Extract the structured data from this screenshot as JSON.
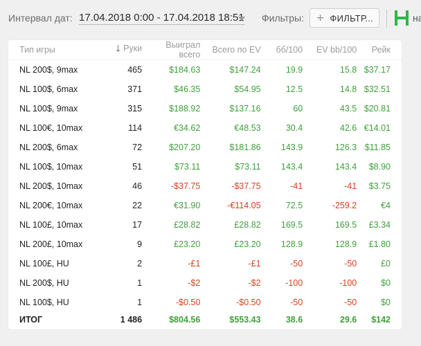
{
  "toolbar": {
    "date_label": "Интервал дат:",
    "date_value": "17.04.2018 0:00 - 17.04.2018 18:51",
    "filters_label": "Фильтры:",
    "filters_button_label": "ФИЛЬТР...",
    "brand_text": "на",
    "brand_color": "#2fb548"
  },
  "table": {
    "headers": [
      "Тип игры",
      "Руки",
      "Выиграл всего",
      "Всего по EV",
      "бб/100",
      "EV bb/100",
      "Рейк"
    ],
    "sorted_column": "Руки",
    "rows": [
      {
        "type": "NL 200$, 9max",
        "hands": "465",
        "won": "$184.63",
        "ev": "$147.24",
        "bb100": "19.9",
        "evbb": "15.8",
        "rake": "$37.17"
      },
      {
        "type": "NL 100$, 6max",
        "hands": "371",
        "won": "$46.35",
        "ev": "$54.95",
        "bb100": "12.5",
        "evbb": "14.8",
        "rake": "$32.51"
      },
      {
        "type": "NL 100$, 9max",
        "hands": "315",
        "won": "$188.92",
        "ev": "$137.16",
        "bb100": "60",
        "evbb": "43.5",
        "rake": "$20.81"
      },
      {
        "type": "NL 100€, 10max",
        "hands": "114",
        "won": "€34.62",
        "ev": "€48.53",
        "bb100": "30.4",
        "evbb": "42.6",
        "rake": "€14.01"
      },
      {
        "type": "NL 200$, 6max",
        "hands": "72",
        "won": "$207.20",
        "ev": "$181.86",
        "bb100": "143.9",
        "evbb": "126.3",
        "rake": "$11.85"
      },
      {
        "type": "NL 100$, 10max",
        "hands": "51",
        "won": "$73.11",
        "ev": "$73.11",
        "bb100": "143.4",
        "evbb": "143.4",
        "rake": "$8.90"
      },
      {
        "type": "NL 200$, 10max",
        "hands": "46",
        "won": "-$37.75",
        "ev": "-$37.75",
        "bb100": "-41",
        "evbb": "-41",
        "rake": "$3.75"
      },
      {
        "type": "NL 200€, 10max",
        "hands": "22",
        "won": "€31.90",
        "ev": "-€114.05",
        "bb100": "72.5",
        "evbb": "-259.2",
        "rake": "€4"
      },
      {
        "type": "NL 100£, 10max",
        "hands": "17",
        "won": "£28.82",
        "ev": "£28.82",
        "bb100": "169.5",
        "evbb": "169.5",
        "rake": "£3.34"
      },
      {
        "type": "NL 200£, 10max",
        "hands": "9",
        "won": "£23.20",
        "ev": "£23.20",
        "bb100": "128.9",
        "evbb": "128.9",
        "rake": "£1.80"
      },
      {
        "type": "NL 100£, HU",
        "hands": "2",
        "won": "-£1",
        "ev": "-£1",
        "bb100": "-50",
        "evbb": "-50",
        "rake": "£0"
      },
      {
        "type": "NL 200$, HU",
        "hands": "1",
        "won": "-$2",
        "ev": "-$2",
        "bb100": "-100",
        "evbb": "-100",
        "rake": "$0"
      },
      {
        "type": "NL 100$, HU",
        "hands": "1",
        "won": "-$0.50",
        "ev": "-$0.50",
        "bb100": "-50",
        "evbb": "-50",
        "rake": "$0"
      }
    ],
    "total": {
      "type": "ИТОГ",
      "hands": "1 486",
      "won": "$804.56",
      "ev": "$553.43",
      "bb100": "38.6",
      "evbb": "29.6",
      "rake": "$142"
    },
    "colors": {
      "positive": "#3fa03a",
      "negative": "#d4411e",
      "header": "#9b9b9b"
    }
  }
}
